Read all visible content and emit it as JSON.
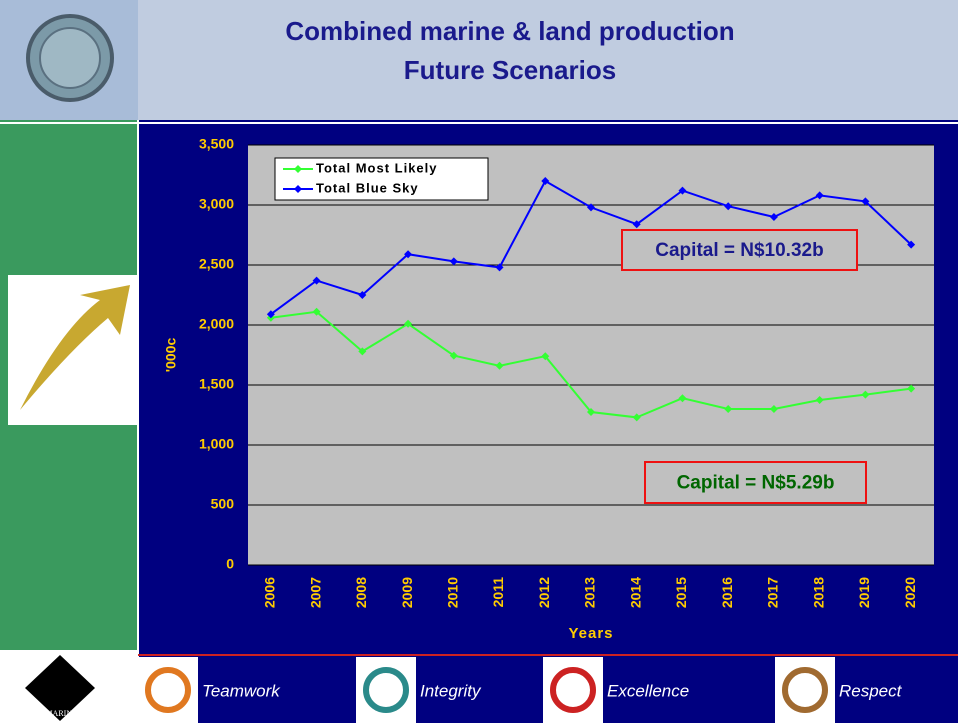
{
  "header": {
    "title": [
      "Combined marine & land production",
      "Future Scenarios"
    ]
  },
  "chart_data": {
    "type": "line",
    "x_label": "Years",
    "y_label": "'000c",
    "categories": [
      "2006",
      "2007",
      "2008",
      "2009",
      "2010",
      "2011",
      "2012",
      "2013",
      "2014",
      "2015",
      "2016",
      "2017",
      "2018",
      "2019",
      "2020"
    ],
    "series": [
      {
        "name": "Total Most Likely",
        "color": "#33ff33",
        "values": [
          2060,
          2110,
          1780,
          2010,
          1745,
          1660,
          1740,
          1275,
          1230,
          1390,
          1300,
          1300,
          1375,
          1420,
          1470
        ]
      },
      {
        "name": "Total Blue Sky",
        "color": "#0000ff",
        "values": [
          2090,
          2370,
          2250,
          2590,
          2530,
          2480,
          3200,
          2980,
          2840,
          3120,
          2990,
          2900,
          3080,
          3030,
          2670
        ]
      }
    ],
    "ylim": [
      0,
      3500
    ],
    "yticks": [
      0,
      500,
      {
        "value": 1000,
        "label": "1,000"
      },
      {
        "value": 1500,
        "label": "1,500"
      },
      {
        "value": 2000,
        "label": "2,000"
      },
      {
        "value": 2500,
        "label": "2,500"
      },
      {
        "value": 3000,
        "label": "3,000"
      },
      {
        "value": 3500,
        "label": "3,500"
      }
    ],
    "grid": true,
    "legend": "top-left",
    "annotations": [
      "Capital = N$10.32b",
      "Capital = N$5.29b"
    ]
  },
  "footer": {
    "values": [
      "Teamwork",
      "Integrity",
      "Excellence",
      "Respect"
    ],
    "company": "DE BEERS MARINE NAMIBIA"
  }
}
